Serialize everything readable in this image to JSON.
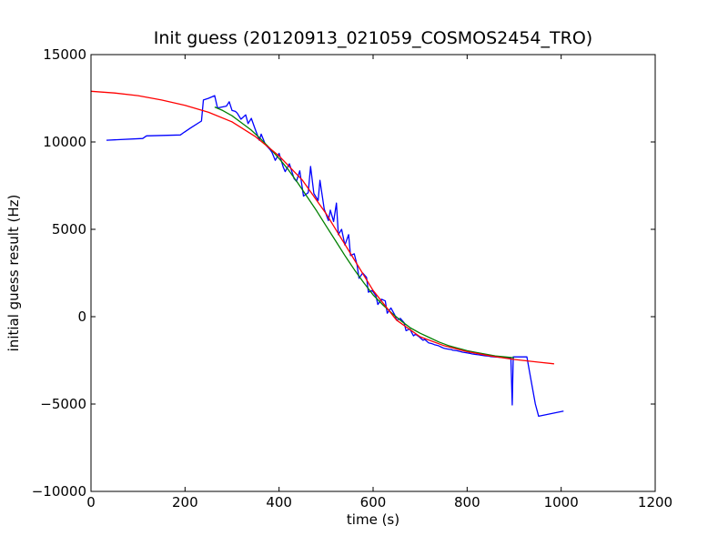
{
  "chart_data": {
    "type": "line",
    "title": "Init guess (20120913_021059_COSMOS2454_TRO)",
    "xlabel": "time (s)",
    "ylabel": "initial guess result (Hz)",
    "xlim": [
      0,
      1200
    ],
    "ylim": [
      -10000,
      15000
    ],
    "xticks": [
      0,
      200,
      400,
      600,
      800,
      1000,
      1200
    ],
    "yticks": [
      -10000,
      -5000,
      0,
      5000,
      10000,
      15000
    ],
    "xtick_labels": [
      "0",
      "200",
      "400",
      "600",
      "800",
      "1000",
      "1200"
    ],
    "ytick_labels": [
      "−10000",
      "−5000",
      "0",
      "5000",
      "10000",
      "15000"
    ],
    "grid": false,
    "series": [
      {
        "color": "#0000ff",
        "x": [
          33,
          110,
          118,
          190,
          198,
          212,
          235,
          239,
          250,
          263,
          269,
          288,
          294,
          300,
          307,
          311,
          319,
          329,
          334,
          341,
          349,
          358,
          362,
          371,
          381,
          385,
          392,
          400,
          409,
          413,
          422,
          432,
          437,
          444,
          452,
          462,
          467,
          474,
          483,
          487,
          496,
          505,
          509,
          516,
          522,
          526,
          533,
          540,
          548,
          552,
          560,
          566,
          570,
          578,
          586,
          590,
          598,
          606,
          610,
          618,
          626,
          630,
          638,
          646,
          650,
          658,
          666,
          670,
          678,
          686,
          690,
          698,
          706,
          710,
          718,
          726,
          730,
          738,
          746,
          750,
          758,
          766,
          770,
          778,
          786,
          790,
          798,
          806,
          810,
          818,
          826,
          830,
          838,
          846,
          850,
          858,
          866,
          870,
          878,
          886,
          893,
          896,
          898,
          905,
          912,
          920,
          927,
          935,
          945,
          952,
          1005
        ],
        "y": [
          10100,
          10200,
          10350,
          10400,
          10550,
          10800,
          11200,
          12400,
          12500,
          12650,
          11950,
          12050,
          12300,
          11800,
          11750,
          11650,
          11300,
          11550,
          11050,
          11350,
          10750,
          10100,
          10450,
          9850,
          9550,
          9400,
          8950,
          9350,
          8550,
          8300,
          8750,
          7900,
          7750,
          8350,
          6900,
          7100,
          8600,
          7050,
          6650,
          7800,
          6150,
          5500,
          6100,
          5450,
          6500,
          4700,
          5000,
          4100,
          4700,
          3500,
          3600,
          2950,
          2200,
          2500,
          2250,
          1400,
          1500,
          1200,
          700,
          1000,
          900,
          200,
          500,
          100,
          -200,
          -100,
          -350,
          -800,
          -700,
          -1100,
          -1000,
          -1150,
          -1350,
          -1300,
          -1500,
          -1550,
          -1600,
          -1650,
          -1750,
          -1800,
          -1850,
          -1880,
          -1920,
          -1950,
          -2000,
          -2030,
          -2060,
          -2100,
          -2130,
          -2160,
          -2190,
          -2210,
          -2240,
          -2260,
          -2280,
          -2300,
          -2320,
          -2330,
          -2340,
          -2350,
          -2360,
          -5050,
          -2300,
          -2300,
          -2300,
          -2300,
          -2300,
          -3500,
          -5000,
          -5700,
          -5400
        ]
      },
      {
        "color": "#008000",
        "x": [
          263,
          280,
          300,
          320,
          340,
          360,
          380,
          400,
          420,
          440,
          460,
          480,
          500,
          520,
          540,
          560,
          580,
          600,
          620,
          640,
          660,
          680,
          700,
          720,
          740,
          760,
          780,
          800,
          820,
          840,
          860,
          880,
          900
        ],
        "y": [
          12000,
          11800,
          11500,
          11100,
          10700,
          10200,
          9650,
          9050,
          8400,
          7650,
          6850,
          6050,
          5200,
          4350,
          3500,
          2700,
          1950,
          1250,
          700,
          200,
          -250,
          -650,
          -950,
          -1200,
          -1450,
          -1650,
          -1800,
          -1950,
          -2050,
          -2150,
          -2250,
          -2300,
          -2350
        ]
      },
      {
        "color": "#ff0000",
        "x": [
          0,
          50,
          100,
          150,
          200,
          250,
          300,
          350,
          400,
          450,
          500,
          550,
          600,
          650,
          700,
          750,
          800,
          850,
          900,
          950,
          985
        ],
        "y": [
          12900,
          12800,
          12650,
          12400,
          12100,
          11700,
          11150,
          10300,
          9200,
          7800,
          5900,
          3700,
          1500,
          -200,
          -1150,
          -1650,
          -2000,
          -2250,
          -2450,
          -2600,
          -2700
        ]
      }
    ]
  }
}
